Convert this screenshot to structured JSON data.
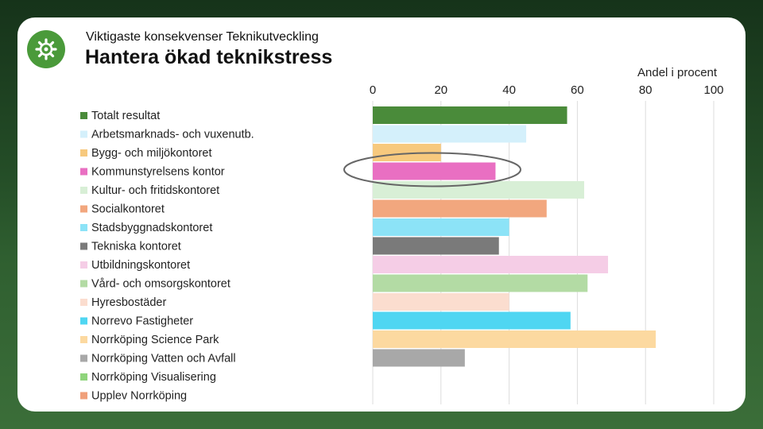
{
  "header": {
    "subtitle": "Viktigaste konsekvenser Teknikutveckling",
    "title": "Hantera ökad teknikstress"
  },
  "colors": {
    "badge": "#4a9a3a",
    "highlight_ellipse": "#666666"
  },
  "chart_data": {
    "type": "bar",
    "orientation": "horizontal",
    "axis_title": "Andel i procent",
    "xlim": [
      0,
      100
    ],
    "ticks": [
      0,
      20,
      40,
      60,
      80,
      100
    ],
    "tick_labels": [
      "0",
      "20",
      "40",
      "60",
      "80",
      "100"
    ],
    "grid": true,
    "legend_position": "left",
    "highlighted_category": "Kommunstyrelsens kontor",
    "categories": [
      "Totalt resultat",
      "Arbetsmarknads- och vuxenutb.",
      "Bygg- och miljökontoret",
      "Kommunstyrelsens kontor",
      "Kultur- och fritidskontoret",
      "Socialkontoret",
      "Stadsbyggnadskontoret",
      "Tekniska kontoret",
      "Utbildningskontoret",
      "Vård- och omsorgskontoret",
      "Hyresbostäder",
      "Norrevo Fastigheter",
      "Norrköping Science Park",
      "Norrköping Vatten och Avfall",
      "Norrköping Visualisering",
      "Upplev Norrköping"
    ],
    "values": [
      57,
      45,
      20,
      36,
      62,
      51,
      40,
      37,
      69,
      63,
      40,
      58,
      83,
      27,
      null,
      null
    ],
    "colors": [
      "#4a8b3a",
      "#d4f0fb",
      "#f7c97e",
      "#e96fc2",
      "#d8efd6",
      "#f2a77e",
      "#8ce3f7",
      "#7a7a7a",
      "#f5cde6",
      "#b3dba4",
      "#fbddcf",
      "#4fd6f2",
      "#fcd9a0",
      "#a8a8a8",
      "#8fd47c",
      "#f0a07a"
    ]
  }
}
